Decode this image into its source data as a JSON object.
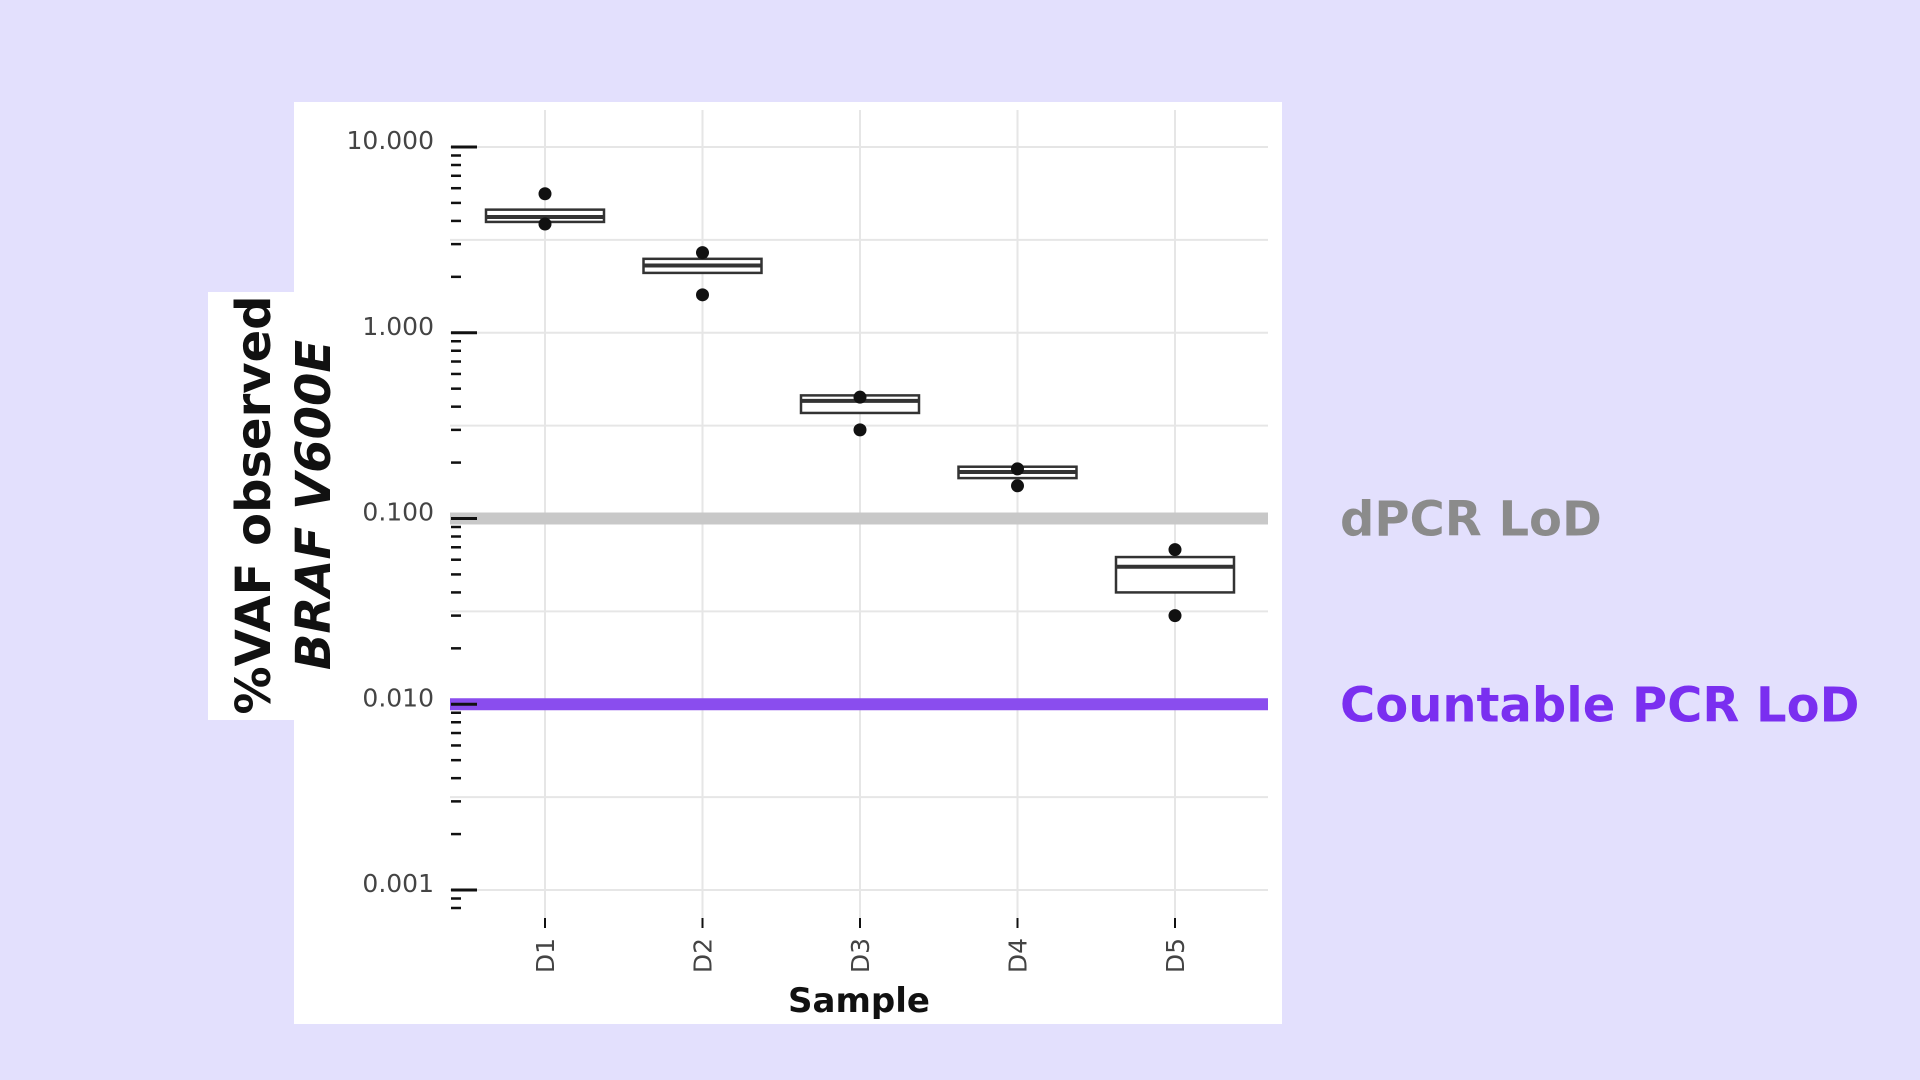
{
  "chart_data": {
    "type": "box",
    "xlabel": "Sample",
    "ylabel_line1": "%VAF observed",
    "ylabel_line2": "BRAF V600E",
    "yscale": "log10",
    "ylim": [
      0.001,
      10
    ],
    "yticks": [
      "10.000",
      "1.000",
      "0.100",
      "0.010",
      "0.001"
    ],
    "ytick_values": [
      10,
      1,
      0.1,
      0.01,
      0.001
    ],
    "grid": true,
    "categories": [
      "D1",
      "D2",
      "D3",
      "D4",
      "D5"
    ],
    "boxes": [
      {
        "name": "D1",
        "q1": 3.95,
        "median": 4.2,
        "q3": 4.6,
        "points": [
          5.6,
          3.85
        ]
      },
      {
        "name": "D2",
        "q1": 2.1,
        "median": 2.3,
        "q3": 2.5,
        "points": [
          2.7,
          1.6
        ]
      },
      {
        "name": "D3",
        "q1": 0.37,
        "median": 0.43,
        "q3": 0.46,
        "points": [
          0.45,
          0.3
        ]
      },
      {
        "name": "D4",
        "q1": 0.165,
        "median": 0.178,
        "q3": 0.19,
        "points": [
          0.185,
          0.15
        ]
      },
      {
        "name": "D5",
        "q1": 0.04,
        "median": 0.055,
        "q3": 0.062,
        "points": [
          0.068,
          0.03
        ]
      }
    ],
    "reference_lines": [
      {
        "label": "dPCR LoD",
        "value": 0.1,
        "color": "#c8c8c8",
        "label_color": "#8b8b8b"
      },
      {
        "label": "Countable PCR LoD",
        "value": 0.01,
        "color": "#8a4dee",
        "label_color": "#7a2ff0"
      }
    ]
  },
  "colors": {
    "background": "#e3e0fd",
    "panel": "#ffffff",
    "grid": "#e6e6e6",
    "box_stroke": "#333333",
    "point": "#111111"
  }
}
